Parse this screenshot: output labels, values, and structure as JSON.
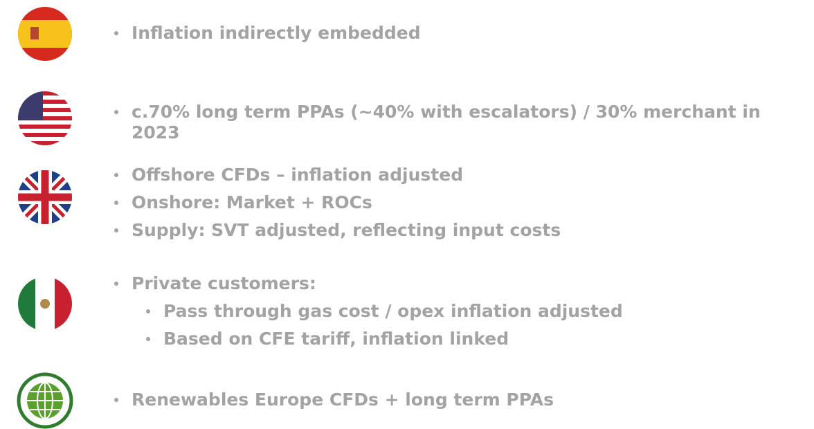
{
  "rows": [
    {
      "flag": "Spain",
      "bullets": [
        "Inflation indirectly embedded"
      ]
    },
    {
      "flag": "United States",
      "bullets": [
        "c.70% long term PPAs (~40% with escalators) / 30% merchant in 2023"
      ]
    },
    {
      "flag": "United Kingdom",
      "bullets": [
        "Offshore CFDs – inflation adjusted",
        "Onshore: Market + ROCs",
        "Supply: SVT adjusted, reflecting input costs"
      ]
    },
    {
      "flag": "Mexico",
      "bullets": [
        "Private customers:"
      ],
      "sub_bullets": [
        "Pass through gas cost / opex inflation adjusted",
        "Based on CFE tariff, inflation linked"
      ]
    },
    {
      "flag": "Global",
      "bullets": [
        "Renewables Europe CFDs + long term PPAs"
      ]
    }
  ]
}
